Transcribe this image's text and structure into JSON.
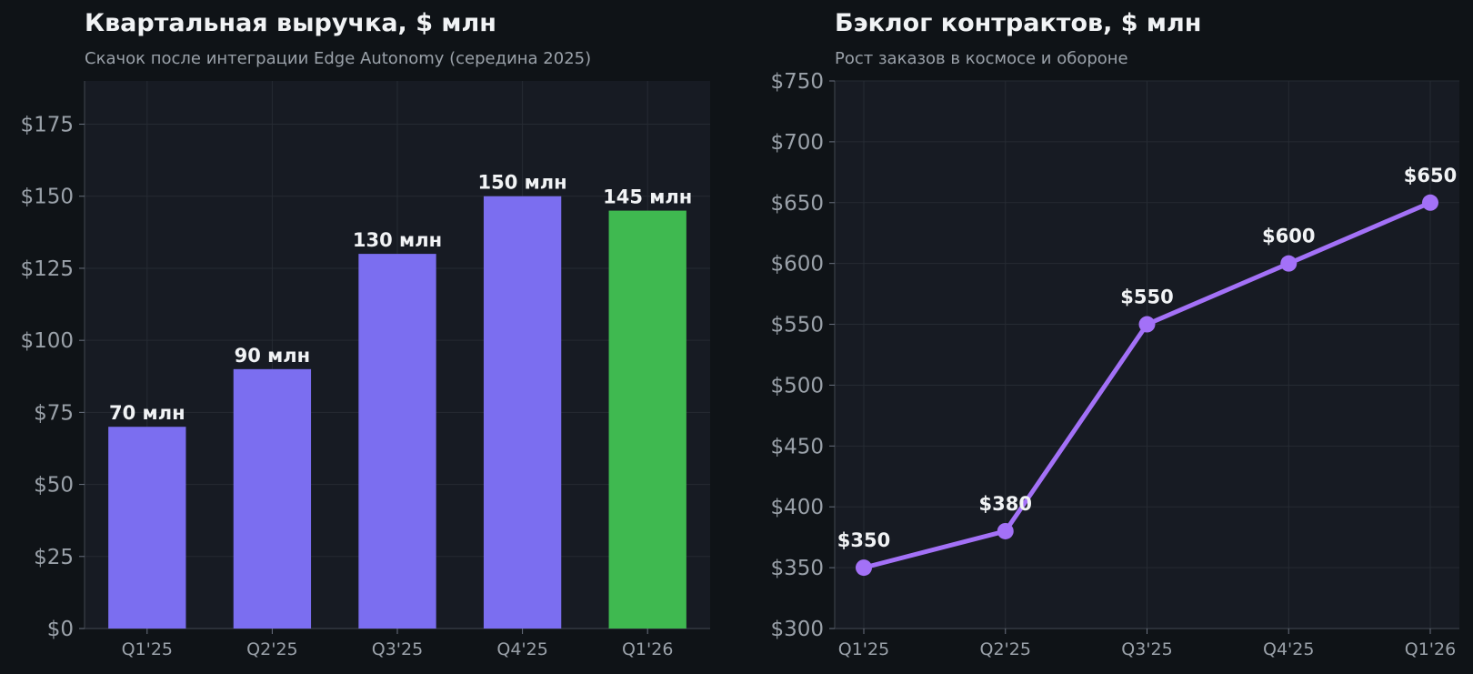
{
  "colors": {
    "background": "#0f1317",
    "plot_background": "#171b23",
    "grid": "#262b33",
    "bar": "#7b6ef0",
    "bar_highlight": "#3fb950",
    "line": "#a371f7",
    "text": "#f1f3f5",
    "muted_text": "#9aa1a9"
  },
  "chart_data": [
    {
      "type": "bar",
      "title": "Квартальная выручка, $ млн",
      "subtitle": "Скачок после интеграции Edge Autonomy (середина 2025)",
      "categories": [
        "Q1'25",
        "Q2'25",
        "Q3'25",
        "Q4'25",
        "Q1'26"
      ],
      "values": [
        70,
        90,
        130,
        150,
        145
      ],
      "data_labels": [
        "70 млн",
        "90 млн",
        "130 млн",
        "150 млн",
        "145 млн"
      ],
      "highlight_index": 4,
      "ylim": [
        0,
        190
      ],
      "yticks": [
        0,
        25,
        50,
        75,
        100,
        125,
        150,
        175
      ],
      "ytick_labels": [
        "$0",
        "$25",
        "$50",
        "$75",
        "$100",
        "$125",
        "$150",
        "$175"
      ],
      "grid": true
    },
    {
      "type": "line",
      "title": "Бэклог контрактов, $ млн",
      "subtitle": "Рост заказов в космосе и обороне",
      "categories": [
        "Q1'25",
        "Q2'25",
        "Q3'25",
        "Q4'25",
        "Q1'26"
      ],
      "values": [
        350,
        380,
        550,
        600,
        650
      ],
      "data_labels": [
        "$350",
        "$380",
        "$550",
        "$600",
        "$650"
      ],
      "ylim": [
        300,
        750
      ],
      "yticks": [
        300,
        350,
        400,
        450,
        500,
        550,
        600,
        650,
        700,
        750
      ],
      "ytick_labels": [
        "$300",
        "$350",
        "$400",
        "$450",
        "$500",
        "$550",
        "$600",
        "$650",
        "$700",
        "$750"
      ],
      "grid": true
    }
  ]
}
